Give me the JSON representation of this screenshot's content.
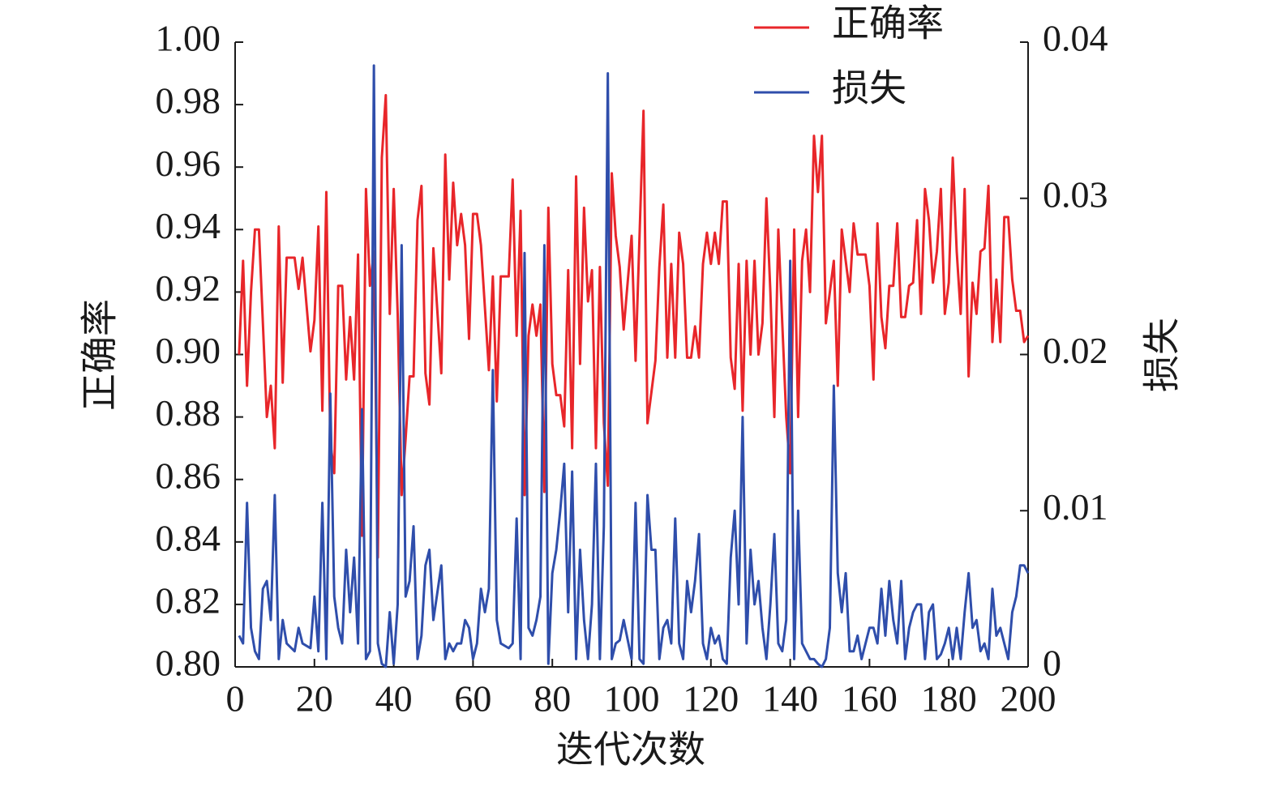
{
  "chart_data": {
    "type": "line",
    "xlabel": "迭代次数",
    "ylabel": "正确率",
    "y2label": "损失",
    "legend": "upper right",
    "x": [
      1,
      2,
      3,
      4,
      5,
      6,
      7,
      8,
      9,
      10,
      11,
      12,
      13,
      15,
      16,
      17,
      19,
      20,
      21,
      22,
      23,
      24,
      25,
      26,
      27,
      28,
      29,
      30,
      31,
      32,
      33,
      34,
      35,
      36,
      37,
      38,
      39,
      40,
      41,
      42,
      43,
      44,
      45,
      46,
      47,
      48,
      49,
      50,
      52,
      53,
      54,
      55,
      56,
      57,
      58,
      59,
      60,
      61,
      62,
      63,
      64,
      65,
      66,
      67,
      69,
      70,
      71,
      72,
      73,
      74,
      75,
      76,
      77,
      78,
      79,
      80,
      81,
      82,
      83,
      84,
      85,
      86,
      87,
      88,
      89,
      90,
      91,
      92,
      93,
      94,
      95,
      96,
      97,
      98,
      100,
      101,
      102,
      103,
      104,
      105,
      106,
      107,
      108,
      109,
      110,
      111,
      112,
      113,
      114,
      115,
      116,
      117,
      118,
      119,
      120,
      121,
      122,
      123,
      124,
      125,
      126,
      127,
      128,
      129,
      130,
      131,
      132,
      133,
      134,
      135,
      136,
      137,
      138,
      139,
      140,
      141,
      142,
      143,
      144,
      145,
      146,
      147,
      148,
      149,
      150,
      151,
      152,
      153,
      154,
      155,
      156,
      157,
      158,
      159,
      160,
      161,
      162,
      163,
      164,
      165,
      166,
      167,
      168,
      169,
      170,
      171,
      172,
      173,
      174,
      175,
      176,
      177,
      178,
      179,
      180,
      181,
      182,
      183,
      184,
      185,
      186,
      187,
      188,
      189,
      190,
      191,
      192,
      193,
      194,
      195,
      196,
      197,
      198,
      199,
      200
    ],
    "series": [
      {
        "name": "正确率",
        "color": "#e8262a",
        "axis": "y",
        "values": [
          0.9,
          0.93,
          0.89,
          0.92,
          0.94,
          0.94,
          0.91,
          0.88,
          0.89,
          0.87,
          0.941,
          0.891,
          0.931,
          0.931,
          0.921,
          0.931,
          0.901,
          0.911,
          0.941,
          0.882,
          0.952,
          0.872,
          0.862,
          0.922,
          0.922,
          0.892,
          0.912,
          0.892,
          0.932,
          0.842,
          0.953,
          0.922,
          0.933,
          0.835,
          0.963,
          0.983,
          0.913,
          0.953,
          0.913,
          0.855,
          0.873,
          0.893,
          0.893,
          0.943,
          0.954,
          0.894,
          0.884,
          0.934,
          0.894,
          0.964,
          0.924,
          0.955,
          0.935,
          0.945,
          0.935,
          0.905,
          0.945,
          0.945,
          0.935,
          0.915,
          0.895,
          0.925,
          0.885,
          0.925,
          0.925,
          0.956,
          0.906,
          0.946,
          0.855,
          0.906,
          0.916,
          0.906,
          0.916,
          0.856,
          0.947,
          0.897,
          0.887,
          0.887,
          0.877,
          0.927,
          0.87,
          0.957,
          0.897,
          0.947,
          0.917,
          0.927,
          0.87,
          0.928,
          0.878,
          0.858,
          0.958,
          0.938,
          0.928,
          0.908,
          0.938,
          0.898,
          0.938,
          0.978,
          0.878,
          0.888,
          0.898,
          0.928,
          0.948,
          0.899,
          0.929,
          0.899,
          0.939,
          0.929,
          0.899,
          0.899,
          0.909,
          0.899,
          0.929,
          0.939,
          0.929,
          0.939,
          0.929,
          0.949,
          0.949,
          0.899,
          0.889,
          0.929,
          0.882,
          0.93,
          0.9,
          0.93,
          0.9,
          0.91,
          0.95,
          0.92,
          0.88,
          0.94,
          0.91,
          0.88,
          0.862,
          0.94,
          0.88,
          0.93,
          0.94,
          0.92,
          0.97,
          0.952,
          0.97,
          0.91,
          0.92,
          0.93,
          0.89,
          0.94,
          0.93,
          0.92,
          0.942,
          0.932,
          0.932,
          0.932,
          0.922,
          0.892,
          0.942,
          0.912,
          0.902,
          0.922,
          0.922,
          0.942,
          0.912,
          0.912,
          0.922,
          0.923,
          0.943,
          0.913,
          0.953,
          0.943,
          0.923,
          0.933,
          0.953,
          0.913,
          0.923,
          0.963,
          0.933,
          0.913,
          0.953,
          0.893,
          0.923,
          0.913,
          0.933,
          0.934,
          0.954,
          0.904,
          0.924,
          0.904,
          0.944,
          0.944,
          0.924,
          0.914,
          0.914,
          0.904,
          0.906
        ]
      },
      {
        "name": "损失",
        "color": "#2f4eab",
        "axis": "y2",
        "values": [
          0.002,
          0.0015,
          0.0105,
          0.0025,
          0.001,
          0.0005,
          0.005,
          0.0055,
          0.003,
          0.011,
          0.0005,
          0.003,
          0.0015,
          0.001,
          0.0025,
          0.0015,
          0.0012,
          0.0045,
          0.001,
          0.0105,
          0.0005,
          0.0175,
          0.0045,
          0.0025,
          0.0015,
          0.0075,
          0.0035,
          0.007,
          0.0015,
          0.0165,
          0.0005,
          0.001,
          0.0385,
          0.0015,
          0.0002,
          0,
          0.0035,
          0.0002,
          0.004,
          0.027,
          0.0045,
          0.0055,
          0.009,
          0.0005,
          0.002,
          0.0065,
          0.0075,
          0.003,
          0.0065,
          0.0005,
          0.0015,
          0.001,
          0.0015,
          0.0015,
          0.003,
          0.0025,
          0.0005,
          0.0015,
          0.005,
          0.0035,
          0.005,
          0.019,
          0.003,
          0.0015,
          0.0012,
          0.0015,
          0.0095,
          0.0005,
          0.0265,
          0.0025,
          0.002,
          0.003,
          0.0045,
          0.027,
          0.0002,
          0.006,
          0.0075,
          0.01,
          0.013,
          0.0035,
          0.0125,
          0.0005,
          0.0075,
          0.003,
          0.0005,
          0.004,
          0.013,
          0.0005,
          0.009,
          0.038,
          0.0005,
          0.0015,
          0.0017,
          0.003,
          0.0005,
          0.0105,
          0.0005,
          0.0002,
          0.011,
          0.0075,
          0.0075,
          0.0005,
          0.0025,
          0.003,
          0.0015,
          0.0095,
          0.0015,
          0.0005,
          0.0055,
          0.0035,
          0.0055,
          0.0085,
          0.0015,
          0.0005,
          0.0025,
          0.0015,
          0.002,
          0.0005,
          0.0002,
          0.007,
          0.01,
          0.004,
          0.016,
          0.0015,
          0.0075,
          0.004,
          0.0055,
          0.0025,
          0.0005,
          0.004,
          0.0085,
          0.0015,
          0.001,
          0.003,
          0.026,
          0.0005,
          0.01,
          0.0015,
          0.001,
          0.0005,
          0.0005,
          0.0002,
          0,
          0.0005,
          0.0025,
          0.018,
          0.006,
          0.0035,
          0.006,
          0.001,
          0.001,
          0.002,
          0.0005,
          0.0015,
          0.0025,
          0.0025,
          0.0015,
          0.005,
          0.002,
          0.0055,
          0.003,
          0.0015,
          0.0055,
          0.0005,
          0.0025,
          0.0035,
          0.004,
          0.004,
          0.0005,
          0.0035,
          0.004,
          0.0005,
          0.0008,
          0.0015,
          0.0025,
          0.0005,
          0.0025,
          0.0005,
          0.0035,
          0.006,
          0.0025,
          0.003,
          0.001,
          0.0015,
          0.0005,
          0.005,
          0.002,
          0.0025,
          0.0015,
          0.0005,
          0.0035,
          0.0045,
          0.0065,
          0.0065,
          0.006
        ]
      }
    ],
    "xlim": [
      0,
      200
    ],
    "xticks": [
      0,
      20,
      40,
      60,
      80,
      100,
      120,
      140,
      160,
      180,
      200
    ],
    "ylim": [
      0.8,
      1.0
    ],
    "yticks": [
      {
        "value": 0.8,
        "label": "0.80"
      },
      {
        "value": 0.82,
        "label": "0.82"
      },
      {
        "value": 0.84,
        "label": "0.84"
      },
      {
        "value": 0.86,
        "label": "0.86"
      },
      {
        "value": 0.88,
        "label": "0.88"
      },
      {
        "value": 0.9,
        "label": "0.90"
      },
      {
        "value": 0.92,
        "label": "0.92"
      },
      {
        "value": 0.94,
        "label": "0.94"
      },
      {
        "value": 0.96,
        "label": "0.96"
      },
      {
        "value": 0.98,
        "label": "0.98"
      },
      {
        "value": 1.0,
        "label": "1.00"
      }
    ],
    "y2lim": [
      0,
      0.04
    ],
    "y2ticks": [
      0,
      0.01,
      0.02,
      0.03,
      0.04
    ],
    "grid": false
  }
}
